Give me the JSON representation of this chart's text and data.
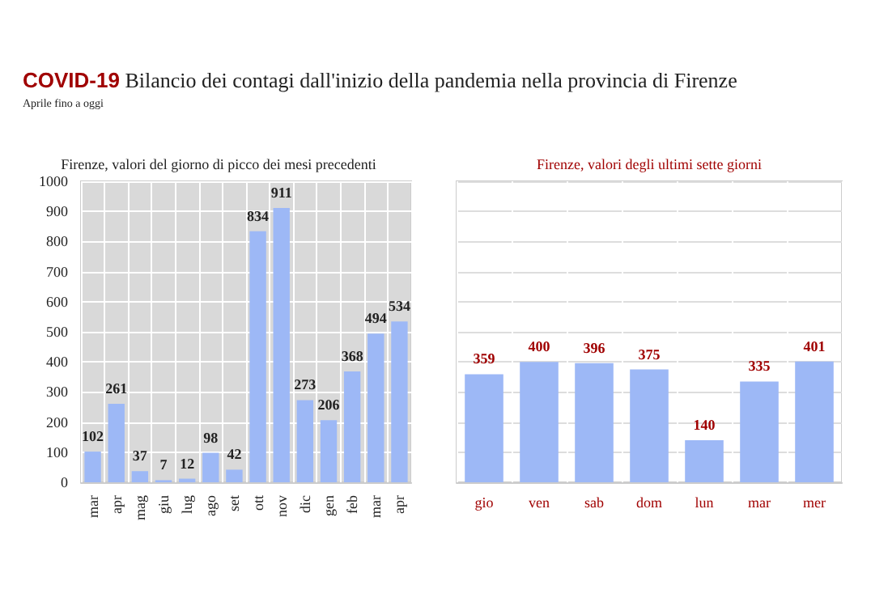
{
  "chart_data": [
    {
      "type": "bar",
      "title": "Firenze, valori del giorno di picco dei mesi precedenti",
      "annotations": [
        "COVID-19 Bilancio dei contagi dall'inizio della pandemia nella provincia di Firenze",
        "Aprile fino a oggi"
      ],
      "categories": [
        "mar",
        "apr",
        "mag",
        "giu",
        "lug",
        "ago",
        "set",
        "ott",
        "nov",
        "dic",
        "gen",
        "feb",
        "mar",
        "apr"
      ],
      "values": [
        102,
        261,
        37,
        7,
        12,
        98,
        42,
        834,
        911,
        273,
        206,
        368,
        494,
        534
      ],
      "color": "#9db8f6",
      "ylim": [
        0,
        1000
      ],
      "yticks": [
        0,
        100,
        200,
        300,
        400,
        500,
        600,
        700,
        800,
        900,
        1000
      ],
      "grid": true,
      "data_labels": true
    },
    {
      "type": "bar",
      "title": "Firenze, valori degli ultimi sette giorni",
      "categories": [
        "gio",
        "ven",
        "sab",
        "dom",
        "lun",
        "mar",
        "mer"
      ],
      "values": [
        359,
        400,
        396,
        375,
        140,
        335,
        401
      ],
      "color": "#9db8f6",
      "ylim": [
        0,
        1000
      ],
      "yticks": [
        0,
        100,
        200,
        300,
        400,
        500,
        600,
        700,
        800,
        900,
        1000
      ],
      "grid": true,
      "data_labels": true,
      "tick_labels": "x"
    }
  ]
}
